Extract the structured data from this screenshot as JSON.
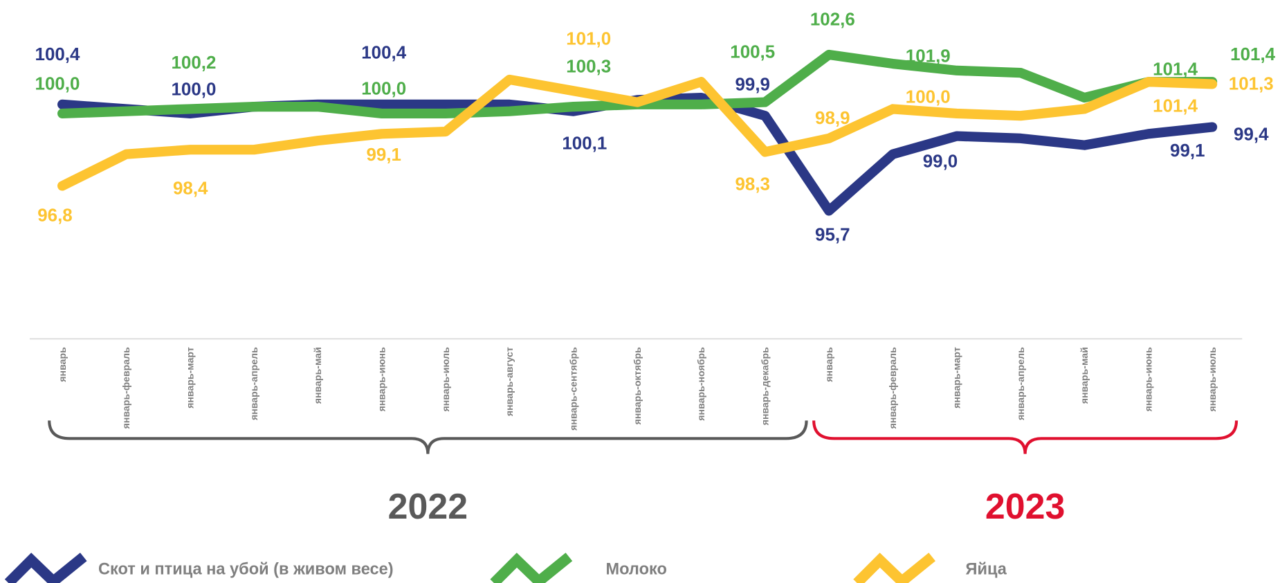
{
  "chart_data": {
    "type": "line",
    "categories": [
      "январь",
      "январь-февраль",
      "январь-март",
      "январь-апрель",
      "январь-май",
      "январь-июнь",
      "январь-июль",
      "январь-август",
      "январь-сентябрь",
      "январь-октябрь",
      "январь-ноябрь",
      "январь-декабрь",
      "январь",
      "январь-февраль",
      "январь-март",
      "январь-апрель",
      "январь-май",
      "январь-июнь",
      "январь-июль"
    ],
    "periods": [
      {
        "label": "2022",
        "start": 0,
        "end": 11,
        "color": "#595959"
      },
      {
        "label": "2023",
        "start": 12,
        "end": 18,
        "color": "#e0102f"
      }
    ],
    "ylim": [
      95,
      104
    ],
    "series": [
      {
        "name": "Скот и птица на убой (в живом весе)",
        "color": "#2b3886",
        "values": [
          100.4,
          100.2,
          100.0,
          100.3,
          100.4,
          100.4,
          100.4,
          100.4,
          100.1,
          100.6,
          100.7,
          99.9,
          95.7,
          98.2,
          99.0,
          98.9,
          98.6,
          99.1,
          99.4
        ],
        "value_labels": [
          "100,4",
          null,
          "100,0",
          null,
          null,
          "100,4",
          null,
          null,
          "100,1",
          null,
          null,
          "99,9",
          "95,7",
          null,
          "99,0",
          null,
          null,
          "99,1",
          "99,4"
        ]
      },
      {
        "name": "Молоко",
        "color": "#4fae4a",
        "values": [
          100.0,
          100.1,
          100.2,
          100.3,
          100.3,
          100.0,
          100.0,
          100.1,
          100.3,
          100.4,
          100.4,
          100.5,
          102.6,
          102.2,
          101.9,
          101.8,
          100.7,
          101.4,
          101.4
        ],
        "value_labels": [
          "100,0",
          null,
          "100,2",
          null,
          null,
          "100,0",
          null,
          null,
          "100,3",
          null,
          null,
          "100,5",
          "102,6",
          null,
          "101,9",
          null,
          null,
          "101,4",
          "101,4"
        ]
      },
      {
        "name": "Яйца",
        "color": "#fdc431",
        "values": [
          96.8,
          98.2,
          98.4,
          98.4,
          98.8,
          99.1,
          99.2,
          101.5,
          101.0,
          100.5,
          101.4,
          98.3,
          98.9,
          100.2,
          100.0,
          99.9,
          100.2,
          101.4,
          101.3
        ],
        "value_labels": [
          "96,8",
          null,
          "98,4",
          null,
          null,
          "99,1",
          null,
          null,
          "101,0",
          null,
          null,
          "98,3",
          "98,9",
          null,
          "100,0",
          null,
          null,
          "101,4",
          "101,3"
        ]
      }
    ]
  }
}
